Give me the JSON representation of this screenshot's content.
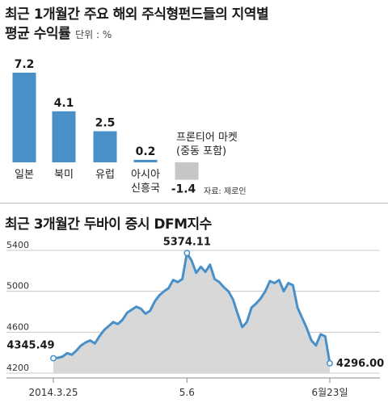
{
  "chart_data": [
    {
      "type": "bar",
      "title": "최근 1개월간 주요 해외 주식형펀드들의 지역별 평균 수익률",
      "unit": "단위 : %",
      "categories": [
        "일본",
        "북미",
        "유럽",
        "아시아 신흥국",
        "프론티어 마켓 (중동 포함)"
      ],
      "category_lines": [
        [
          "일본"
        ],
        [
          "북미"
        ],
        [
          "유럽"
        ],
        [
          "아시아",
          "신흥국"
        ],
        [
          "프론티어 마켓",
          "(중동 포함)"
        ]
      ],
      "values": [
        7.2,
        4.1,
        2.5,
        0.2,
        -1.4
      ],
      "value_labels": [
        "7.2",
        "4.1",
        "2.5",
        "0.2",
        "-1.4"
      ],
      "ylim": [
        -1.4,
        7.2
      ],
      "source": "자료: 제로인",
      "colors": {
        "positive": "#4a90c8",
        "negative": "#c6c6c6"
      }
    },
    {
      "type": "line",
      "title": "최근 3개월간 두바이 증시 DFM지수",
      "ylim": [
        4200,
        5400
      ],
      "yticks": [
        5400,
        5000,
        4600,
        4200
      ],
      "xtick_labels": [
        "2014.3.25",
        "5.6",
        "6월23일"
      ],
      "xtick_positions": [
        0,
        29,
        60
      ],
      "annotations": [
        {
          "label": "4345.49",
          "value": 4345.49,
          "index": 0
        },
        {
          "label": "5374.11",
          "value": 5374.11,
          "index": 29
        },
        {
          "label": "4296.00",
          "value": 4296.0,
          "index": 60
        }
      ],
      "series": [
        {
          "values": [
            4345.49,
            4350,
            4362,
            4395,
            4380,
            4420,
            4470,
            4500,
            4520,
            4490,
            4560,
            4620,
            4660,
            4700,
            4680,
            4720,
            4790,
            4820,
            4850,
            4830,
            4780,
            4810,
            4900,
            4960,
            5000,
            5030,
            5110,
            5090,
            5120,
            5374.11,
            5300,
            5180,
            5240,
            5190,
            5260,
            5120,
            5090,
            5040,
            5000,
            4920,
            4780,
            4650,
            4700,
            4840,
            4880,
            4930,
            5000,
            5100,
            5080,
            5110,
            5000,
            5080,
            5060,
            4840,
            4740,
            4640,
            4520,
            4470,
            4580,
            4560,
            4296.0
          ],
          "color": "#4a90c8",
          "fill": "#d8d8d8"
        }
      ]
    }
  ]
}
